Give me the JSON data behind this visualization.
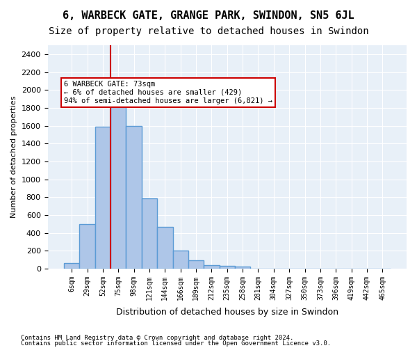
{
  "title": "6, WARBECK GATE, GRANGE PARK, SWINDON, SN5 6JL",
  "subtitle": "Size of property relative to detached houses in Swindon",
  "xlabel": "Distribution of detached houses by size in Swindon",
  "ylabel": "Number of detached properties",
  "footnote1": "Contains HM Land Registry data © Crown copyright and database right 2024.",
  "footnote2": "Contains public sector information licensed under the Open Government Licence v3.0.",
  "bar_labels": [
    "6sqm",
    "29sqm",
    "52sqm",
    "75sqm",
    "98sqm",
    "121sqm",
    "144sqm",
    "166sqm",
    "189sqm",
    "212sqm",
    "235sqm",
    "258sqm",
    "281sqm",
    "304sqm",
    "327sqm",
    "350sqm",
    "373sqm",
    "396sqm",
    "419sqm",
    "442sqm",
    "465sqm"
  ],
  "bar_values": [
    60,
    500,
    1590,
    1960,
    1600,
    790,
    470,
    200,
    95,
    35,
    28,
    20,
    0,
    0,
    0,
    0,
    0,
    0,
    0,
    0,
    0
  ],
  "bar_color": "#aec6e8",
  "bar_edge_color": "#5b9bd5",
  "bar_edge_width": 1.0,
  "vline_x": 2,
  "vline_color": "#cc0000",
  "vline_label": "6 WARBECK GATE: 73sqm",
  "annotation_line1": "6 WARBECK GATE: 73sqm",
  "annotation_line2": "← 6% of detached houses are smaller (429)",
  "annotation_line3": "94% of semi-detached houses are larger (6,821) →",
  "annotation_box_color": "#cc0000",
  "ylim": [
    0,
    2500
  ],
  "yticks": [
    0,
    200,
    400,
    600,
    800,
    1000,
    1200,
    1400,
    1600,
    1800,
    2000,
    2200,
    2400
  ],
  "bg_color": "#e8f0f8",
  "grid_color": "#ffffff",
  "title_fontsize": 11,
  "subtitle_fontsize": 10
}
